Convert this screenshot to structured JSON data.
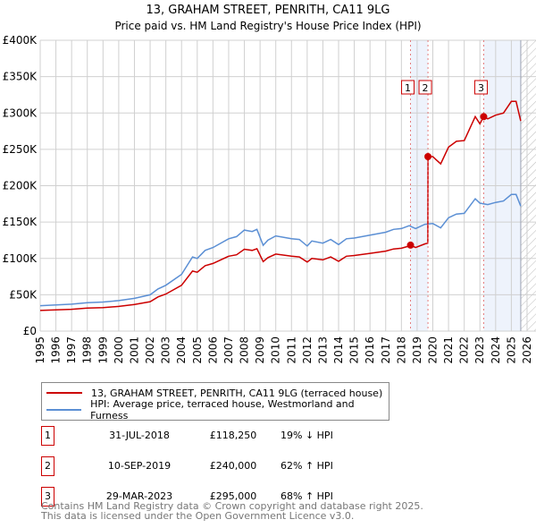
{
  "chart_data": {
    "type": "line",
    "title": "13, GRAHAM STREET, PENRITH, CA11 9LG",
    "subtitle": "Price paid vs. HM Land Registry's House Price Index (HPI)",
    "xlim": [
      1995,
      2026
    ],
    "ylim": [
      0,
      400000
    ],
    "y_ticks": [
      {
        "v": 0,
        "label": "£0"
      },
      {
        "v": 50000,
        "label": "£50K"
      },
      {
        "v": 100000,
        "label": "£100K"
      },
      {
        "v": 150000,
        "label": "£150K"
      },
      {
        "v": 200000,
        "label": "£200K"
      },
      {
        "v": 250000,
        "label": "£250K"
      },
      {
        "v": 300000,
        "label": "£300K"
      },
      {
        "v": 350000,
        "label": "£350K"
      },
      {
        "v": 400000,
        "label": "£400K"
      }
    ],
    "x_ticks": [
      "1995",
      "1996",
      "1997",
      "1998",
      "1999",
      "2000",
      "2001",
      "2002",
      "2003",
      "2004",
      "2005",
      "2006",
      "2007",
      "2008",
      "2009",
      "2010",
      "2011",
      "2012",
      "2013",
      "2014",
      "2015",
      "2016",
      "2017",
      "2018",
      "2019",
      "2020",
      "2021",
      "2022",
      "2023",
      "2024",
      "2025",
      "2026"
    ],
    "grid": true,
    "data_end": 2025.6,
    "shaded_ranges": [
      [
        2018.58,
        2019.69
      ],
      [
        2023.24,
        2025.6
      ]
    ],
    "series": [
      {
        "name": "13, GRAHAM STREET, PENRITH, CA11 9LG (terraced house)",
        "color": "#cc0000",
        "points": [
          [
            1995,
            28400
          ],
          [
            1996,
            29200
          ],
          [
            1997,
            30000
          ],
          [
            1998,
            31600
          ],
          [
            1999,
            32400
          ],
          [
            2000,
            34000
          ],
          [
            2001,
            36500
          ],
          [
            2002,
            40500
          ],
          [
            2002.5,
            47000
          ],
          [
            2003,
            51000
          ],
          [
            2004,
            63000
          ],
          [
            2004.7,
            82600
          ],
          [
            2005,
            81000
          ],
          [
            2005.5,
            90000
          ],
          [
            2006,
            93000
          ],
          [
            2007,
            103000
          ],
          [
            2007.5,
            105000
          ],
          [
            2008,
            112600
          ],
          [
            2008.5,
            111000
          ],
          [
            2008.8,
            113400
          ],
          [
            2009.2,
            95600
          ],
          [
            2009.5,
            101000
          ],
          [
            2010,
            106000
          ],
          [
            2011,
            103000
          ],
          [
            2011.5,
            102000
          ],
          [
            2012,
            95000
          ],
          [
            2012.3,
            100000
          ],
          [
            2013,
            98000
          ],
          [
            2013.5,
            102000
          ],
          [
            2014,
            96000
          ],
          [
            2014.5,
            103000
          ],
          [
            2015,
            104000
          ],
          [
            2016,
            107000
          ],
          [
            2017,
            110000
          ],
          [
            2017.5,
            113000
          ],
          [
            2018,
            114000
          ],
          [
            2018.5,
            117000
          ],
          [
            2018.58,
            118250
          ],
          [
            2018.9,
            115000
          ],
          [
            2019.5,
            120000
          ],
          [
            2019.68,
            121000
          ],
          [
            2019.69,
            240000
          ],
          [
            2020,
            240000
          ],
          [
            2020.2,
            236000
          ],
          [
            2020.5,
            230000
          ],
          [
            2021,
            253000
          ],
          [
            2021.5,
            261000
          ],
          [
            2022,
            262000
          ],
          [
            2022.7,
            295000
          ],
          [
            2023,
            285000
          ],
          [
            2023.24,
            295000
          ],
          [
            2023.5,
            292000
          ],
          [
            2024,
            297000
          ],
          [
            2024.5,
            300000
          ],
          [
            2025,
            316000
          ],
          [
            2025.3,
            316000
          ],
          [
            2025.6,
            289000
          ]
        ]
      },
      {
        "name": "HPI: Average price, terraced house, Westmorland and Furness",
        "color": "#5b8fd4",
        "points": [
          [
            1995,
            35000
          ],
          [
            1996,
            36000
          ],
          [
            1997,
            37000
          ],
          [
            1998,
            39000
          ],
          [
            1999,
            40000
          ],
          [
            2000,
            42000
          ],
          [
            2001,
            45000
          ],
          [
            2002,
            50000
          ],
          [
            2002.5,
            58000
          ],
          [
            2003,
            63000
          ],
          [
            2004,
            78000
          ],
          [
            2004.7,
            102000
          ],
          [
            2005,
            100000
          ],
          [
            2005.5,
            111000
          ],
          [
            2006,
            115000
          ],
          [
            2007,
            127000
          ],
          [
            2007.5,
            130000
          ],
          [
            2008,
            139000
          ],
          [
            2008.5,
            137000
          ],
          [
            2008.8,
            140000
          ],
          [
            2009.2,
            118000
          ],
          [
            2009.5,
            125000
          ],
          [
            2010,
            131000
          ],
          [
            2011,
            127000
          ],
          [
            2011.5,
            126000
          ],
          [
            2012,
            117000
          ],
          [
            2012.3,
            124000
          ],
          [
            2013,
            121000
          ],
          [
            2013.5,
            126000
          ],
          [
            2014,
            119000
          ],
          [
            2014.5,
            127000
          ],
          [
            2015,
            128000
          ],
          [
            2016,
            132000
          ],
          [
            2017,
            136000
          ],
          [
            2017.5,
            140000
          ],
          [
            2018,
            141000
          ],
          [
            2018.5,
            145000
          ],
          [
            2018.9,
            141000
          ],
          [
            2019.5,
            147000
          ],
          [
            2020,
            148000
          ],
          [
            2020.5,
            142000
          ],
          [
            2021,
            156000
          ],
          [
            2021.5,
            161000
          ],
          [
            2022,
            162000
          ],
          [
            2022.7,
            182000
          ],
          [
            2023,
            176000
          ],
          [
            2023.5,
            174000
          ],
          [
            2024,
            177000
          ],
          [
            2024.5,
            179000
          ],
          [
            2025,
            188000
          ],
          [
            2025.3,
            188000
          ],
          [
            2025.6,
            172000
          ]
        ]
      }
    ],
    "sales": [
      {
        "n": "1",
        "x": 2018.58,
        "value": 118250,
        "date": "31-JUL-2018",
        "price": "£118,250",
        "hpi": "19% ↓ HPI"
      },
      {
        "n": "2",
        "x": 2019.69,
        "value": 240000,
        "date": "10-SEP-2019",
        "price": "£240,000",
        "hpi": "62% ↑ HPI"
      },
      {
        "n": "3",
        "x": 2023.24,
        "value": 295000,
        "date": "29-MAR-2023",
        "price": "£295,000",
        "hpi": "68% ↑ HPI"
      }
    ]
  },
  "legend": {
    "red_label": "13, GRAHAM STREET, PENRITH, CA11 9LG (terraced house)",
    "blue_label": "HPI: Average price, terraced house, Westmorland and Furness"
  },
  "footer": {
    "line1": "Contains HM Land Registry data © Crown copyright and database right 2025.",
    "line2": "This data is licensed under the Open Government Licence v3.0."
  }
}
